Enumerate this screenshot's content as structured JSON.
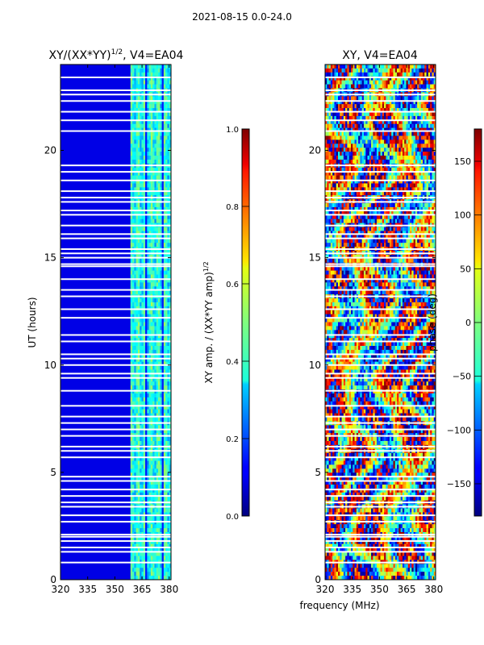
{
  "suptitle": "2021-08-15 0.0-24.0",
  "chart_data": [
    {
      "type": "heatmap",
      "title": "XY/(XX*YY)",
      "title_exponent": "1/2",
      "title_suffix": ", V4=EA04",
      "xlabel": "",
      "ylabel": "UT (hours)",
      "xlim": [
        320,
        381
      ],
      "ylim": [
        0,
        24
      ],
      "xticks": [
        320,
        335,
        350,
        365,
        380
      ],
      "yticks": [
        0,
        5,
        10,
        15,
        20
      ],
      "colorbar": {
        "label": "XY amp. / (XX*YY amp)",
        "label_exponent": "1/2",
        "range": [
          0.0,
          1.0
        ],
        "ticks": [
          "0.0",
          "0.2",
          "0.4",
          "0.6",
          "0.8",
          "1.0"
        ],
        "colormap": "jet"
      },
      "description_values": {
        "background_level": 0.1,
        "band_start_mhz": 359,
        "band_level_range": [
          0.25,
          0.55
        ]
      }
    },
    {
      "type": "heatmap",
      "title": "XY, V4=EA04",
      "xlabel": "frequency (MHz)",
      "ylabel": "",
      "xlim": [
        320,
        381
      ],
      "ylim": [
        0,
        24
      ],
      "xticks": [
        320,
        335,
        350,
        365,
        380
      ],
      "yticks": [
        0,
        5,
        10,
        15,
        20
      ],
      "colorbar": {
        "label": "phase (deg)",
        "range": [
          -180,
          180
        ],
        "ticks": [
          "−150",
          "−100",
          "−50",
          "0",
          "50",
          "100",
          "150"
        ],
        "colormap": "jet"
      }
    }
  ],
  "flag_times_hours": [
    0.8,
    1.3,
    1.5,
    1.8,
    2.0,
    2.1,
    2.7,
    3.0,
    3.4,
    3.6,
    3.9,
    4.2,
    4.6,
    4.8,
    5.7,
    6.0,
    6.2,
    6.7,
    7.0,
    7.3,
    7.6,
    8.1,
    8.8,
    9.4,
    9.6,
    10.0,
    10.3,
    10.5,
    11.1,
    11.4,
    12.2,
    12.6,
    13.2,
    13.5,
    14.0,
    14.6,
    14.7,
    15.0,
    15.2,
    15.4,
    15.9,
    16.1,
    16.5,
    17.0,
    17.2,
    17.6,
    17.8,
    18.1,
    18.6,
    19.0,
    19.3,
    20.9,
    21.4,
    21.8,
    22.3,
    22.6,
    22.8,
    23.4
  ]
}
